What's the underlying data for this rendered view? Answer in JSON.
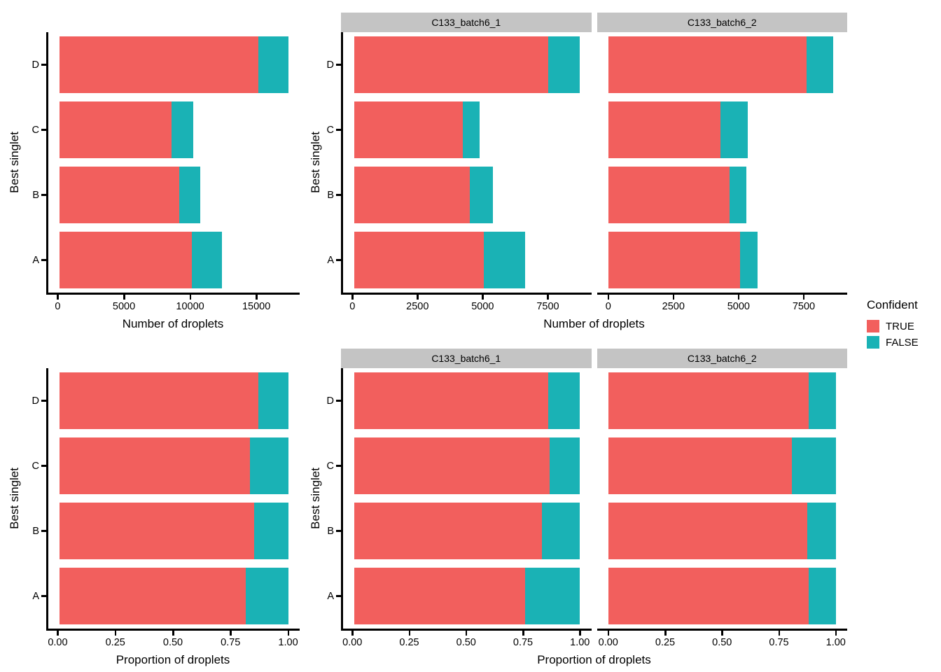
{
  "legend": {
    "title": "Confident",
    "items": [
      {
        "label": "TRUE",
        "color": "#F25F5D"
      },
      {
        "label": "FALSE",
        "color": "#1AB2B5"
      }
    ]
  },
  "colors": {
    "true_fill": "#F25F5D",
    "false_fill": "#1AB2B5",
    "strip_bg": "#C4C4C4",
    "axis": "#000000"
  },
  "chart_data": [
    {
      "type": "bar",
      "orientation": "horizontal",
      "stacked": true,
      "position": "top-left",
      "xlabel": "Number of droplets",
      "ylabel": "Best singlet",
      "categories": [
        "D",
        "C",
        "B",
        "A"
      ],
      "x_ticks": [
        0,
        5000,
        10000,
        15000
      ],
      "x_tick_labels": [
        "0",
        "5000",
        "10000",
        "15000"
      ],
      "xmax": 17400,
      "show_strips": false,
      "facets": [
        {
          "label": "",
          "series": [
            {
              "name": "TRUE",
              "values": [
                15100,
                8500,
                9100,
                10050
              ]
            },
            {
              "name": "FALSE",
              "values": [
                2300,
                1690,
                1600,
                2280
              ]
            }
          ]
        }
      ]
    },
    {
      "type": "bar",
      "orientation": "horizontal",
      "stacked": true,
      "position": "top-right",
      "xlabel": "Number of droplets",
      "ylabel": "Best singlet",
      "categories": [
        "D",
        "C",
        "B",
        "A"
      ],
      "x_ticks": [
        0,
        2500,
        5000,
        7500
      ],
      "x_tick_labels": [
        "0",
        "2500",
        "5000",
        "7500"
      ],
      "xmax": 8730,
      "show_strips": true,
      "facets": [
        {
          "label": "C133_batch6_1",
          "series": [
            {
              "name": "TRUE",
              "values": [
                7500,
                4190,
                4460,
                5000
              ]
            },
            {
              "name": "FALSE",
              "values": [
                1230,
                660,
                910,
                1600
              ]
            }
          ]
        },
        {
          "label": "C133_batch6_2",
          "series": [
            {
              "name": "TRUE",
              "values": [
                7600,
                4310,
                4650,
                5050
              ]
            },
            {
              "name": "FALSE",
              "values": [
                1040,
                1030,
                660,
                680
              ]
            }
          ]
        }
      ]
    },
    {
      "type": "bar",
      "orientation": "horizontal",
      "stacked": true,
      "position": "bottom-left",
      "xlabel": "Proportion of droplets",
      "ylabel": "Best singlet",
      "categories": [
        "D",
        "C",
        "B",
        "A"
      ],
      "x_ticks": [
        0,
        0.25,
        0.5,
        0.75,
        1
      ],
      "x_tick_labels": [
        "0.00",
        "0.25",
        "0.50",
        "0.75",
        "1.00"
      ],
      "xmax": 1,
      "show_strips": false,
      "facets": [
        {
          "label": "",
          "series": [
            {
              "name": "TRUE",
              "values": [
                0.868,
                0.834,
                0.851,
                0.815
              ]
            },
            {
              "name": "FALSE",
              "values": [
                0.132,
                0.166,
                0.149,
                0.185
              ]
            }
          ]
        }
      ]
    },
    {
      "type": "bar",
      "orientation": "horizontal",
      "stacked": true,
      "position": "bottom-right",
      "xlabel": "Proportion of droplets",
      "ylabel": "Best singlet",
      "categories": [
        "D",
        "C",
        "B",
        "A"
      ],
      "x_ticks": [
        0,
        0.25,
        0.5,
        0.75,
        1
      ],
      "x_tick_labels": [
        "0.00",
        "0.25",
        "0.50",
        "0.75",
        "1.00"
      ],
      "xmax": 1,
      "show_strips": true,
      "facets": [
        {
          "label": "C133_batch6_1",
          "series": [
            {
              "name": "TRUE",
              "values": [
                0.859,
                0.864,
                0.83,
                0.758
              ]
            },
            {
              "name": "FALSE",
              "values": [
                0.141,
                0.136,
                0.17,
                0.242
              ]
            }
          ]
        },
        {
          "label": "C133_batch6_2",
          "series": [
            {
              "name": "TRUE",
              "values": [
                0.88,
                0.807,
                0.876,
                0.881
              ]
            },
            {
              "name": "FALSE",
              "values": [
                0.12,
                0.193,
                0.124,
                0.119
              ]
            }
          ]
        }
      ]
    }
  ]
}
